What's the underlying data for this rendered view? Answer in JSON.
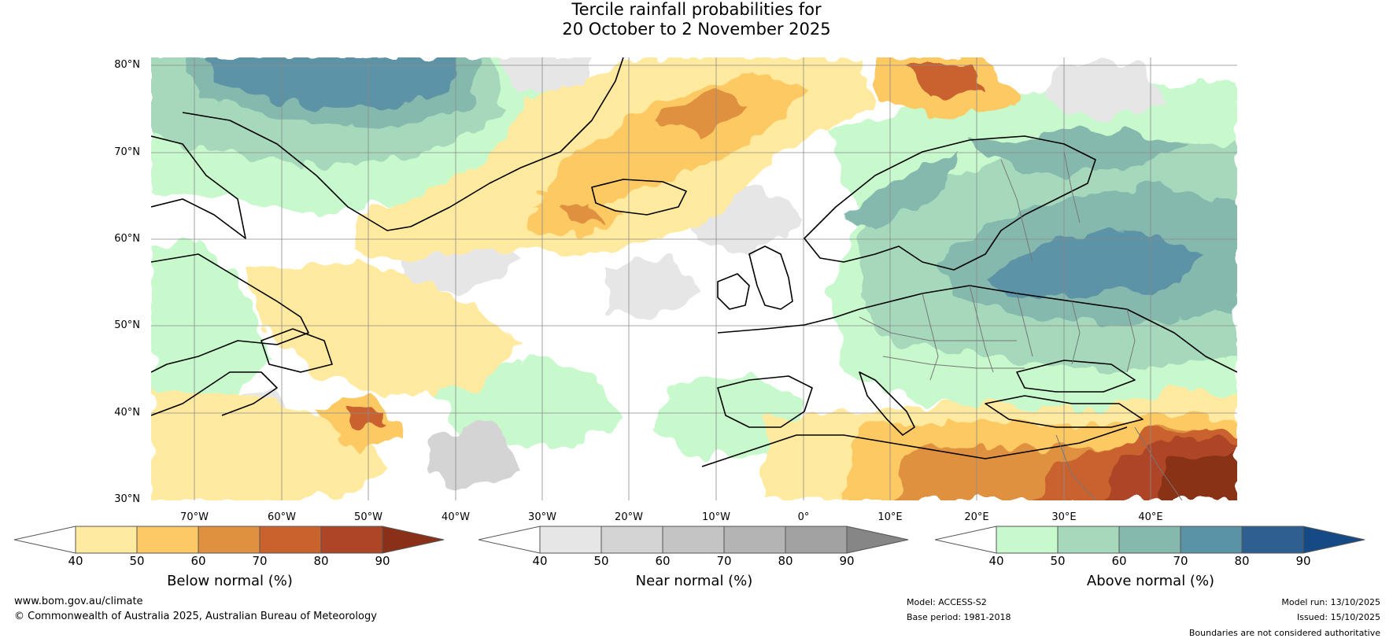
{
  "title": {
    "line1": "Tercile rainfall probabilities for",
    "line2": "20 October to 2 November 2025"
  },
  "map": {
    "lat_labels": [
      "80°N",
      "70°N",
      "60°N",
      "50°N",
      "40°N",
      "30°N"
    ],
    "lon_labels": [
      "70°W",
      "60°W",
      "50°W",
      "40°W",
      "30°W",
      "20°W",
      "10°W",
      "0°",
      "10°E",
      "20°E",
      "30°E",
      "40°E"
    ],
    "lon_range": [
      -75,
      50
    ],
    "lat_range": [
      30,
      81
    ],
    "gridlines": true
  },
  "legends": [
    {
      "name": "Below normal (%)",
      "ticks": [
        "40",
        "50",
        "60",
        "70",
        "80",
        "90"
      ],
      "colors": [
        "#ffffff",
        "#ffeaa0",
        "#fdc964",
        "#e0913f",
        "#c9622d",
        "#ad4526",
        "#8a3018"
      ]
    },
    {
      "name": "Near normal (%)",
      "ticks": [
        "40",
        "50",
        "60",
        "70",
        "80",
        "90"
      ],
      "colors": [
        "#ffffff",
        "#e6e6e6",
        "#d4d4d4",
        "#c4c4c4",
        "#b4b4b4",
        "#a2a2a2",
        "#868686"
      ]
    },
    {
      "name": "Above normal (%)",
      "ticks": [
        "40",
        "50",
        "60",
        "70",
        "80",
        "90"
      ],
      "colors": [
        "#ffffff",
        "#c7f9cc",
        "#a6d9bc",
        "#86b9ae",
        "#5b93a6",
        "#2e5f90",
        "#164a86"
      ]
    }
  ],
  "footer": {
    "website": "www.bom.gov.au/climate",
    "copyright": "© Commonwealth of Australia 2025, Australian Bureau of Meteorology",
    "model": "Model: ACCESS-S2",
    "base_period": "Base period: 1981-2018",
    "model_run": "Model run: 13/10/2025",
    "issued": "Issued: 15/10/2025",
    "disclaimer": "Boundaries are not considered authoritative"
  }
}
